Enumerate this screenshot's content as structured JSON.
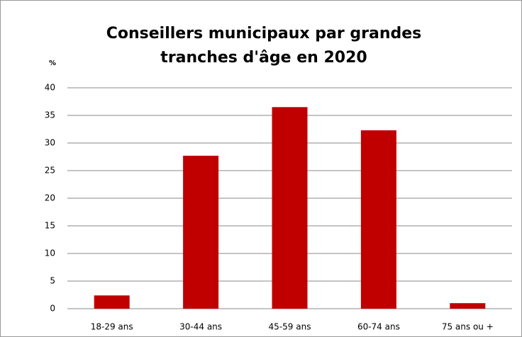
{
  "chart_data": {
    "type": "bar",
    "title": [
      "Conseillers municipaux par grandes",
      "tranches d'âge en 2020"
    ],
    "y_label": "%",
    "categories": [
      "18-29 ans",
      "30-44 ans",
      "45-59 ans",
      "60-74 ans",
      "75 ans ou +"
    ],
    "values": [
      2.4,
      27.7,
      36.5,
      32.3,
      1.0
    ],
    "color": "#c00000",
    "ylim": [
      0,
      40
    ],
    "yticks": [
      0,
      5,
      10,
      15,
      20,
      25,
      30,
      35,
      40
    ],
    "grid": true
  }
}
